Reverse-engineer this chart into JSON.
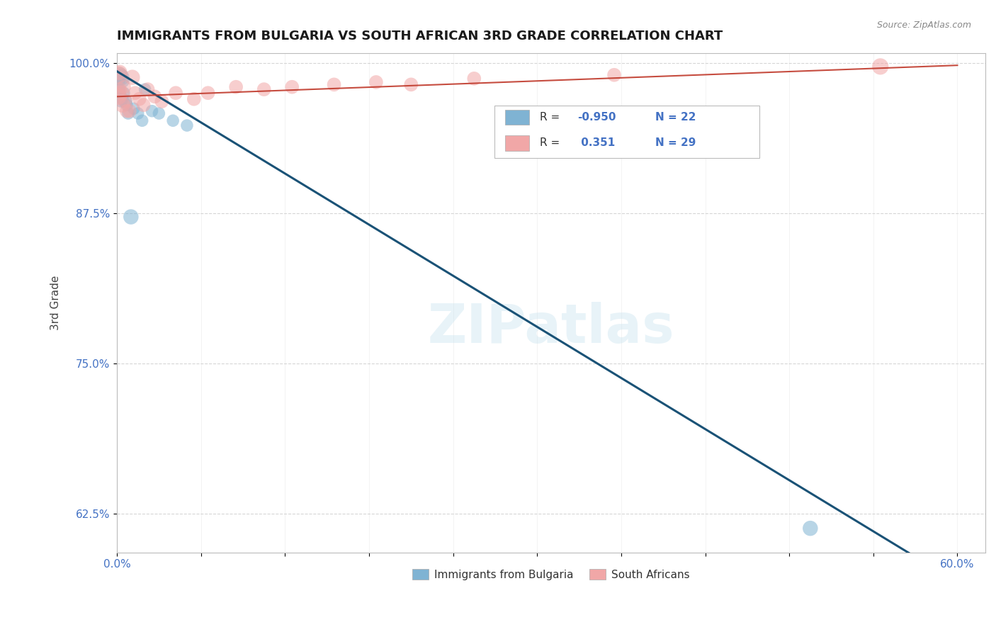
{
  "title": "IMMIGRANTS FROM BULGARIA VS SOUTH AFRICAN 3RD GRADE CORRELATION CHART",
  "source": "Source: ZipAtlas.com",
  "ylabel": "3rd Grade",
  "xlim": [
    0.0,
    0.62
  ],
  "ylim": [
    0.593,
    1.008
  ],
  "yticks": [
    1.0,
    0.875,
    0.75,
    0.625
  ],
  "ytick_labels": [
    "100.0%",
    "87.5%",
    "75.0%",
    "62.5%"
  ],
  "xtick_positions": [
    0.0,
    0.06,
    0.12,
    0.18,
    0.24,
    0.3,
    0.36,
    0.42,
    0.48,
    0.54,
    0.6
  ],
  "xtick_labels": [
    "0.0%",
    "",
    "",
    "",
    "",
    "",
    "",
    "",
    "",
    "",
    "60.0%"
  ],
  "background_color": "#ffffff",
  "watermark": "ZIPatlas",
  "legend_R_blue": "-0.950",
  "legend_N_blue": "22",
  "legend_R_pink": "0.351",
  "legend_N_pink": "29",
  "blue_color": "#7fb3d3",
  "pink_color": "#f1a7a7",
  "trend_blue_color": "#1a5276",
  "trend_pink_color": "#c0392b",
  "blue_scatter_x": [
    0.001,
    0.001,
    0.002,
    0.002,
    0.003,
    0.003,
    0.004,
    0.004,
    0.005,
    0.006,
    0.007,
    0.008,
    0.01,
    0.012,
    0.015,
    0.018,
    0.02,
    0.025,
    0.03,
    0.04,
    0.05,
    0.495
  ],
  "blue_scatter_y": [
    0.985,
    0.978,
    0.99,
    0.975,
    0.988,
    0.968,
    0.985,
    0.97,
    0.975,
    0.968,
    0.965,
    0.958,
    0.872,
    0.962,
    0.958,
    0.952,
    0.978,
    0.96,
    0.958,
    0.952,
    0.948,
    0.613
  ],
  "blue_scatter_sizes": [
    180,
    200,
    250,
    160,
    280,
    160,
    200,
    160,
    160,
    200,
    160,
    160,
    240,
    160,
    160,
    160,
    160,
    160,
    160,
    160,
    160,
    240
  ],
  "pink_scatter_x": [
    0.001,
    0.001,
    0.002,
    0.002,
    0.003,
    0.004,
    0.005,
    0.006,
    0.007,
    0.009,
    0.011,
    0.013,
    0.016,
    0.019,
    0.022,
    0.027,
    0.032,
    0.042,
    0.055,
    0.065,
    0.085,
    0.105,
    0.125,
    0.155,
    0.185,
    0.21,
    0.255,
    0.355,
    0.545
  ],
  "pink_scatter_y": [
    0.99,
    0.972,
    0.992,
    0.978,
    0.975,
    0.965,
    0.98,
    0.968,
    0.96,
    0.96,
    0.988,
    0.975,
    0.97,
    0.965,
    0.978,
    0.972,
    0.968,
    0.975,
    0.97,
    0.975,
    0.98,
    0.978,
    0.98,
    0.982,
    0.984,
    0.982,
    0.987,
    0.99,
    0.997
  ],
  "pink_scatter_sizes": [
    320,
    280,
    240,
    200,
    240,
    240,
    200,
    200,
    200,
    200,
    240,
    200,
    200,
    200,
    200,
    200,
    200,
    200,
    200,
    200,
    200,
    200,
    200,
    200,
    200,
    200,
    200,
    200,
    280
  ],
  "legend_label_blue": "Immigrants from Bulgaria",
  "legend_label_pink": "South Africans"
}
